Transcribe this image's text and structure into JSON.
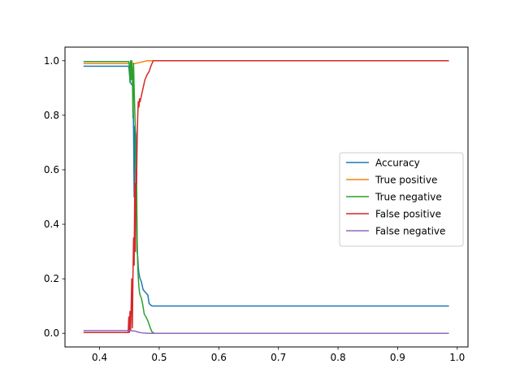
{
  "chart_data": {
    "type": "line",
    "title": "",
    "xlabel": "",
    "ylabel": "",
    "xlim": [
      0.342,
      1.018
    ],
    "ylim": [
      -0.05,
      1.05
    ],
    "xticks": [
      0.4,
      0.5,
      0.6,
      0.7,
      0.8,
      0.9,
      1.0
    ],
    "xtick_labels": [
      "0.4",
      "0.5",
      "0.6",
      "0.7",
      "0.8",
      "0.9",
      "1.0"
    ],
    "yticks": [
      0.0,
      0.2,
      0.4,
      0.6,
      0.8,
      1.0
    ],
    "ytick_labels": [
      "0.0",
      "0.2",
      "0.4",
      "0.6",
      "0.8",
      "1.0"
    ],
    "grid": false,
    "legend_position": "center-right",
    "series": [
      {
        "name": "Accuracy",
        "color": "#1f77b4",
        "x": [
          0.373,
          0.449,
          0.451,
          0.452,
          0.453,
          0.455,
          0.456,
          0.457,
          0.458,
          0.459,
          0.461,
          0.462,
          0.463,
          0.464,
          0.465,
          0.466,
          0.468,
          0.47,
          0.473,
          0.477,
          0.481,
          0.483,
          0.485,
          0.488,
          0.5,
          0.6,
          0.7,
          0.8,
          0.9,
          0.986
        ],
        "y": [
          0.98,
          0.98,
          0.93,
          0.92,
          0.915,
          0.91,
          0.9,
          0.75,
          0.5,
          0.76,
          0.73,
          0.5,
          0.3,
          0.28,
          0.24,
          0.22,
          0.2,
          0.19,
          0.16,
          0.15,
          0.14,
          0.11,
          0.105,
          0.1,
          0.1,
          0.1,
          0.1,
          0.1,
          0.1,
          0.1
        ]
      },
      {
        "name": "True positive",
        "color": "#ff7f0e",
        "x": [
          0.373,
          0.449,
          0.46,
          0.47,
          0.48,
          0.5,
          0.6,
          0.7,
          0.8,
          0.9,
          0.986
        ],
        "y": [
          0.99,
          0.99,
          0.99,
          0.995,
          1.0,
          1.0,
          1.0,
          1.0,
          1.0,
          1.0,
          1.0
        ]
      },
      {
        "name": "True negative",
        "color": "#2ca02c",
        "x": [
          0.373,
          0.449,
          0.45,
          0.451,
          0.452,
          0.453,
          0.454,
          0.455,
          0.456,
          0.457,
          0.458,
          0.459,
          0.46,
          0.461,
          0.462,
          0.463,
          0.464,
          0.465,
          0.466,
          0.467,
          0.468,
          0.47,
          0.472,
          0.475,
          0.478,
          0.482,
          0.485,
          0.488,
          0.492,
          0.5,
          0.6,
          0.7,
          0.8,
          0.9,
          0.986
        ],
        "y": [
          0.997,
          0.997,
          0.98,
          0.92,
          1.0,
          0.93,
          1.0,
          0.96,
          0.79,
          0.99,
          0.9,
          0.82,
          0.75,
          0.45,
          0.6,
          0.35,
          0.25,
          0.2,
          0.17,
          0.15,
          0.14,
          0.13,
          0.11,
          0.07,
          0.06,
          0.04,
          0.02,
          0.005,
          0.0,
          0.0,
          0.0,
          0.0,
          0.0,
          0.0,
          0.0
        ]
      },
      {
        "name": "False positive",
        "color": "#d62728",
        "x": [
          0.373,
          0.448,
          0.449,
          0.45,
          0.451,
          0.452,
          0.453,
          0.454,
          0.455,
          0.456,
          0.457,
          0.458,
          0.459,
          0.46,
          0.461,
          0.462,
          0.463,
          0.464,
          0.465,
          0.466,
          0.467,
          0.468,
          0.47,
          0.473,
          0.476,
          0.478,
          0.48,
          0.483,
          0.486,
          0.488,
          0.49,
          0.5,
          0.6,
          0.7,
          0.8,
          0.9,
          0.986
        ],
        "y": [
          0.003,
          0.003,
          0.06,
          0.003,
          0.08,
          0.01,
          0.1,
          0.2,
          0.02,
          0.21,
          0.35,
          0.25,
          0.55,
          0.3,
          0.6,
          0.55,
          0.7,
          0.8,
          0.85,
          0.83,
          0.86,
          0.85,
          0.87,
          0.9,
          0.93,
          0.94,
          0.95,
          0.96,
          0.98,
          0.99,
          1.0,
          1.0,
          1.0,
          1.0,
          1.0,
          1.0,
          1.0
        ]
      },
      {
        "name": "False negative",
        "color": "#9467bd",
        "x": [
          0.373,
          0.449,
          0.46,
          0.465,
          0.47,
          0.48,
          0.5,
          0.6,
          0.7,
          0.8,
          0.9,
          0.986
        ],
        "y": [
          0.01,
          0.01,
          0.008,
          0.004,
          0.002,
          0.0,
          0.0,
          0.0,
          0.0,
          0.0,
          0.0,
          0.0
        ]
      }
    ]
  }
}
